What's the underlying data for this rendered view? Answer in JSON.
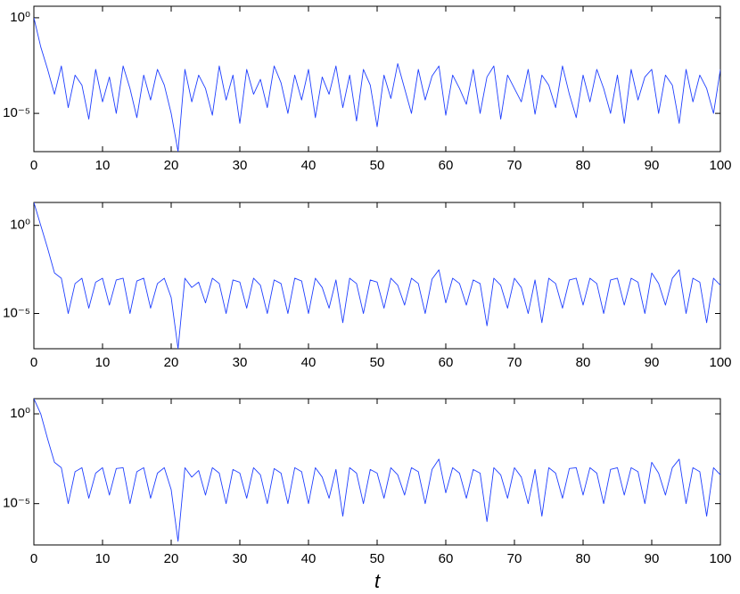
{
  "chart_data": [
    {
      "type": "line",
      "color": "#1f3fff",
      "log_y": true,
      "xlim": [
        0,
        100
      ],
      "xticks": [
        0,
        10,
        20,
        30,
        40,
        50,
        60,
        70,
        80,
        90,
        100
      ],
      "ylim": [
        1e-07,
        4
      ],
      "yticks": [
        {
          "value": 1e-05,
          "label": "10⁻⁵"
        },
        {
          "value": 1,
          "label": "10⁰"
        }
      ],
      "x": [
        0,
        1,
        2,
        3,
        4,
        5,
        6,
        7,
        8,
        9,
        10,
        11,
        12,
        13,
        14,
        15,
        16,
        17,
        18,
        19,
        20,
        21,
        22,
        23,
        24,
        25,
        26,
        27,
        28,
        29,
        30,
        31,
        32,
        33,
        34,
        35,
        36,
        37,
        38,
        39,
        40,
        41,
        42,
        43,
        44,
        45,
        46,
        47,
        48,
        49,
        50,
        51,
        52,
        53,
        54,
        55,
        56,
        57,
        58,
        59,
        60,
        61,
        62,
        63,
        64,
        65,
        66,
        67,
        68,
        69,
        70,
        71,
        72,
        73,
        74,
        75,
        76,
        77,
        78,
        79,
        80,
        81,
        82,
        83,
        84,
        85,
        86,
        87,
        88,
        89,
        90,
        91,
        92,
        93,
        94,
        95,
        96,
        97,
        98,
        99,
        100
      ],
      "values": [
        1,
        0.03,
        0.002,
        0.0001,
        0.003,
        2e-05,
        0.001,
        0.0003,
        5e-06,
        0.002,
        4e-05,
        0.0008,
        1e-05,
        0.003,
        0.0002,
        6e-06,
        0.001,
        5e-05,
        0.002,
        0.0003,
        1e-05,
        1e-07,
        0.002,
        4e-05,
        0.001,
        0.0002,
        8e-06,
        0.003,
        5e-05,
        0.001,
        3e-06,
        0.002,
        0.0001,
        0.0006,
        2e-05,
        0.003,
        0.0004,
        1e-05,
        0.001,
        5e-05,
        0.002,
        6e-06,
        0.0008,
        0.0001,
        0.003,
        2e-05,
        0.001,
        4e-06,
        0.002,
        0.0003,
        2e-06,
        0.001,
        6e-05,
        0.004,
        0.0002,
        1e-05,
        0.002,
        5e-05,
        0.0009,
        0.003,
        8e-06,
        0.001,
        0.0002,
        3e-05,
        0.002,
        1e-05,
        0.0008,
        0.003,
        5e-06,
        0.001,
        0.0002,
        4e-05,
        0.002,
        9e-06,
        0.001,
        0.0003,
        2e-05,
        0.003,
        0.0001,
        6e-06,
        0.001,
        4e-05,
        0.002,
        0.0002,
        1e-05,
        0.001,
        3e-06,
        0.002,
        5e-05,
        0.0008,
        0.002,
        1e-05,
        0.001,
        0.0003,
        3e-06,
        0.002,
        4e-05,
        0.001,
        0.0002,
        1e-05,
        0.002
      ]
    },
    {
      "type": "line",
      "color": "#1f3fff",
      "log_y": true,
      "xlim": [
        0,
        100
      ],
      "xticks": [
        0,
        10,
        20,
        30,
        40,
        50,
        60,
        70,
        80,
        90,
        100
      ],
      "ylim": [
        1e-07,
        20
      ],
      "yticks": [
        {
          "value": 1e-05,
          "label": "10⁻⁵"
        },
        {
          "value": 1,
          "label": "10⁰"
        }
      ],
      "x": [
        0,
        1,
        2,
        3,
        4,
        5,
        6,
        7,
        8,
        9,
        10,
        11,
        12,
        13,
        14,
        15,
        16,
        17,
        18,
        19,
        20,
        21,
        22,
        23,
        24,
        25,
        26,
        27,
        28,
        29,
        30,
        31,
        32,
        33,
        34,
        35,
        36,
        37,
        38,
        39,
        40,
        41,
        42,
        43,
        44,
        45,
        46,
        47,
        48,
        49,
        50,
        51,
        52,
        53,
        54,
        55,
        56,
        57,
        58,
        59,
        60,
        61,
        62,
        63,
        64,
        65,
        66,
        67,
        68,
        69,
        70,
        71,
        72,
        73,
        74,
        75,
        76,
        77,
        78,
        79,
        80,
        81,
        82,
        83,
        84,
        85,
        86,
        87,
        88,
        89,
        90,
        91,
        92,
        93,
        94,
        95,
        96,
        97,
        98,
        99,
        100
      ],
      "values": [
        20,
        1,
        0.05,
        0.002,
        0.001,
        1e-05,
        0.0005,
        0.001,
        2e-05,
        0.0006,
        0.001,
        3e-05,
        0.0008,
        0.001,
        1e-05,
        0.0007,
        0.001,
        2e-05,
        0.0005,
        0.001,
        8e-05,
        1e-07,
        0.001,
        0.0003,
        0.0006,
        4e-05,
        0.001,
        0.0005,
        1e-05,
        0.0008,
        0.0006,
        2e-05,
        0.001,
        0.0004,
        1e-05,
        0.0008,
        0.0005,
        1e-05,
        0.001,
        0.0007,
        1e-05,
        0.001,
        0.0003,
        2e-05,
        0.0008,
        3e-06,
        0.001,
        0.0005,
        1e-05,
        0.0008,
        0.0006,
        2e-05,
        0.001,
        0.0004,
        3e-05,
        0.001,
        0.0005,
        1e-05,
        0.0009,
        0.003,
        4e-05,
        0.001,
        0.0005,
        3e-05,
        0.0008,
        0.0005,
        2e-06,
        0.001,
        0.0004,
        2e-05,
        0.001,
        0.0003,
        1e-05,
        0.0008,
        3e-06,
        0.001,
        0.0005,
        2e-05,
        0.0008,
        0.001,
        3e-05,
        0.001,
        0.0005,
        1e-05,
        0.0008,
        0.001,
        3e-05,
        0.001,
        0.0006,
        1e-05,
        0.002,
        0.0005,
        3e-05,
        0.001,
        0.003,
        1e-05,
        0.001,
        0.0006,
        3e-06,
        0.001,
        0.0004
      ]
    },
    {
      "type": "line",
      "color": "#1f3fff",
      "log_y": true,
      "xlabel": "t",
      "xlim": [
        0,
        100
      ],
      "xticks": [
        0,
        10,
        20,
        30,
        40,
        50,
        60,
        70,
        80,
        90,
        100
      ],
      "ylim": [
        5e-08,
        7
      ],
      "yticks": [
        {
          "value": 1e-05,
          "label": "10⁻⁵"
        },
        {
          "value": 1,
          "label": "10⁰"
        }
      ],
      "x": [
        0,
        1,
        2,
        3,
        4,
        5,
        6,
        7,
        8,
        9,
        10,
        11,
        12,
        13,
        14,
        15,
        16,
        17,
        18,
        19,
        20,
        21,
        22,
        23,
        24,
        25,
        26,
        27,
        28,
        29,
        30,
        31,
        32,
        33,
        34,
        35,
        36,
        37,
        38,
        39,
        40,
        41,
        42,
        43,
        44,
        45,
        46,
        47,
        48,
        49,
        50,
        51,
        52,
        53,
        54,
        55,
        56,
        57,
        58,
        59,
        60,
        61,
        62,
        63,
        64,
        65,
        66,
        67,
        68,
        69,
        70,
        71,
        72,
        73,
        74,
        75,
        76,
        77,
        78,
        79,
        80,
        81,
        82,
        83,
        84,
        85,
        86,
        87,
        88,
        89,
        90,
        91,
        92,
        93,
        94,
        95,
        96,
        97,
        98,
        99,
        100
      ],
      "values": [
        7,
        1,
        0.04,
        0.002,
        0.001,
        1e-05,
        0.0006,
        0.001,
        2e-05,
        0.0005,
        0.001,
        3e-05,
        0.0009,
        0.001,
        1e-05,
        0.0006,
        0.001,
        2e-05,
        0.0005,
        0.001,
        6e-05,
        8e-08,
        0.001,
        0.0003,
        0.0007,
        3e-05,
        0.001,
        0.0005,
        1e-05,
        0.0008,
        0.0005,
        2e-05,
        0.001,
        0.0004,
        1e-05,
        0.0009,
        0.0005,
        1e-05,
        0.001,
        0.0006,
        1e-05,
        0.001,
        0.0003,
        2e-05,
        0.0008,
        2e-06,
        0.001,
        0.0005,
        1e-05,
        0.0008,
        0.0005,
        2e-05,
        0.001,
        0.0004,
        3e-05,
        0.001,
        0.0006,
        1e-05,
        0.0008,
        0.003,
        4e-05,
        0.001,
        0.0005,
        2e-05,
        0.0008,
        0.0005,
        1e-06,
        0.001,
        0.0004,
        2e-05,
        0.001,
        0.0003,
        1e-05,
        0.0008,
        2e-06,
        0.001,
        0.0005,
        2e-05,
        0.0009,
        0.001,
        3e-05,
        0.001,
        0.0005,
        1e-05,
        0.0008,
        0.001,
        3e-05,
        0.001,
        0.0006,
        1e-05,
        0.002,
        0.0005,
        3e-05,
        0.001,
        0.003,
        1e-05,
        0.001,
        0.0006,
        2e-06,
        0.001,
        0.0004
      ]
    }
  ]
}
